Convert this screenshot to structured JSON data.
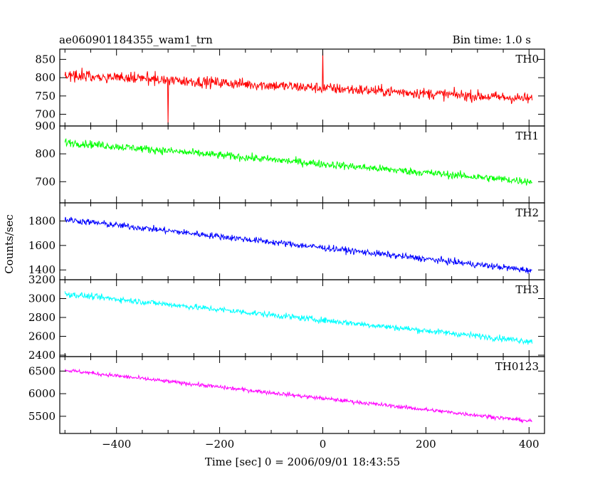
{
  "header": {
    "title": "ae060901184355_wam1_trn",
    "bin_time": "Bin time: 1.0 s"
  },
  "chart_data": {
    "type": "line",
    "title": "ae060901184355_wam1_trn",
    "subtitle": "Bin time: 1.0 s",
    "xlabel": "Time [sec] 0 = 2006/09/01 18:43:55",
    "ylabel": "Counts/sec",
    "xlim": [
      -510,
      430
    ],
    "x_ticks": [
      -400,
      -200,
      0,
      200,
      400
    ],
    "x_tick_labels": [
      "−400",
      "−200",
      "0",
      "200",
      "400"
    ],
    "x_start": -500,
    "x_end": 406,
    "x_step": 1,
    "panels": [
      {
        "name": "TH0",
        "color": "#ff0000",
        "ylim": [
          668,
          878
        ],
        "y_ticks": [
          700,
          750,
          800,
          850
        ],
        "y_tick_labels": [
          "700",
          "750",
          "800",
          "850"
        ],
        "trend": [
          {
            "x": -500,
            "y": 808
          },
          {
            "x": 406,
            "y": 742
          }
        ],
        "noise_amplitude": 26,
        "spikes": [
          {
            "x": 0,
            "y": 876
          },
          {
            "x": -300,
            "y": 672
          }
        ]
      },
      {
        "name": "TH1",
        "color": "#00ff00",
        "ylim": [
          624,
          900
        ],
        "y_ticks": [
          700,
          800,
          900
        ],
        "y_tick_labels": [
          "700",
          "800",
          "900"
        ],
        "trend": [
          {
            "x": -500,
            "y": 842
          },
          {
            "x": 406,
            "y": 700
          }
        ],
        "noise_amplitude": 24,
        "spikes": []
      },
      {
        "name": "TH2",
        "color": "#0000ff",
        "ylim": [
          1320,
          1948
        ],
        "y_ticks": [
          1400,
          1600,
          1800
        ],
        "y_tick_labels": [
          "1400",
          "1600",
          "1800"
        ],
        "trend": [
          {
            "x": -500,
            "y": 1812
          },
          {
            "x": 406,
            "y": 1395
          }
        ],
        "noise_amplitude": 45,
        "spikes": []
      },
      {
        "name": "TH3",
        "color": "#00ffff",
        "ylim": [
          2385,
          3200
        ],
        "y_ticks": [
          2400,
          2600,
          2800,
          3000,
          3200
        ],
        "y_tick_labels": [
          "2400",
          "2600",
          "2800",
          "3000",
          "3200"
        ],
        "trend": [
          {
            "x": -500,
            "y": 3050
          },
          {
            "x": 406,
            "y": 2545
          }
        ],
        "noise_amplitude": 55,
        "spikes": []
      },
      {
        "name": "TH0123",
        "color": "#ff00ff",
        "ylim": [
          5120,
          6820
        ],
        "y_ticks": [
          5500,
          6000,
          6500
        ],
        "y_tick_labels": [
          "5500",
          "6000",
          "6500"
        ],
        "trend": [
          {
            "x": -500,
            "y": 6520
          },
          {
            "x": 406,
            "y": 5390
          }
        ],
        "noise_amplitude": 75,
        "spikes": []
      }
    ]
  }
}
